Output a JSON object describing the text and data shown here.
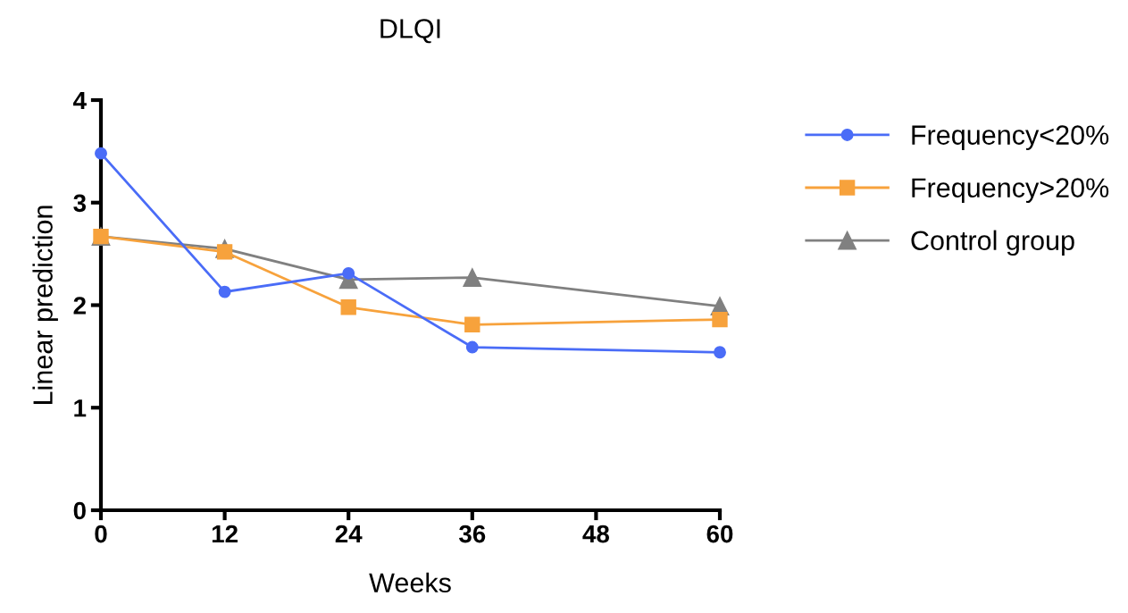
{
  "chart_data": {
    "type": "line",
    "title": "DLQI",
    "xlabel": "Weeks",
    "ylabel": "Linear prediction",
    "x": [
      0,
      12,
      24,
      36,
      60
    ],
    "series": [
      {
        "name": "Frequency<20%",
        "color": "#4a6cf7",
        "marker": "circle",
        "values": [
          3.48,
          2.13,
          2.31,
          1.59,
          1.54
        ]
      },
      {
        "name": "Frequency>20%",
        "color": "#f7a23c",
        "marker": "square",
        "values": [
          2.67,
          2.52,
          1.98,
          1.81,
          1.86
        ]
      },
      {
        "name": "Control group",
        "color": "#808080",
        "marker": "triangle",
        "values": [
          2.67,
          2.55,
          2.25,
          2.27,
          1.99
        ]
      }
    ],
    "xlim": [
      0,
      60
    ],
    "xticks": [
      0,
      12,
      24,
      36,
      48,
      60
    ],
    "ylim": [
      0,
      4
    ],
    "yticks": [
      0,
      1,
      2,
      3,
      4
    ],
    "grid": false,
    "legend": "right",
    "line_style": "solid"
  }
}
